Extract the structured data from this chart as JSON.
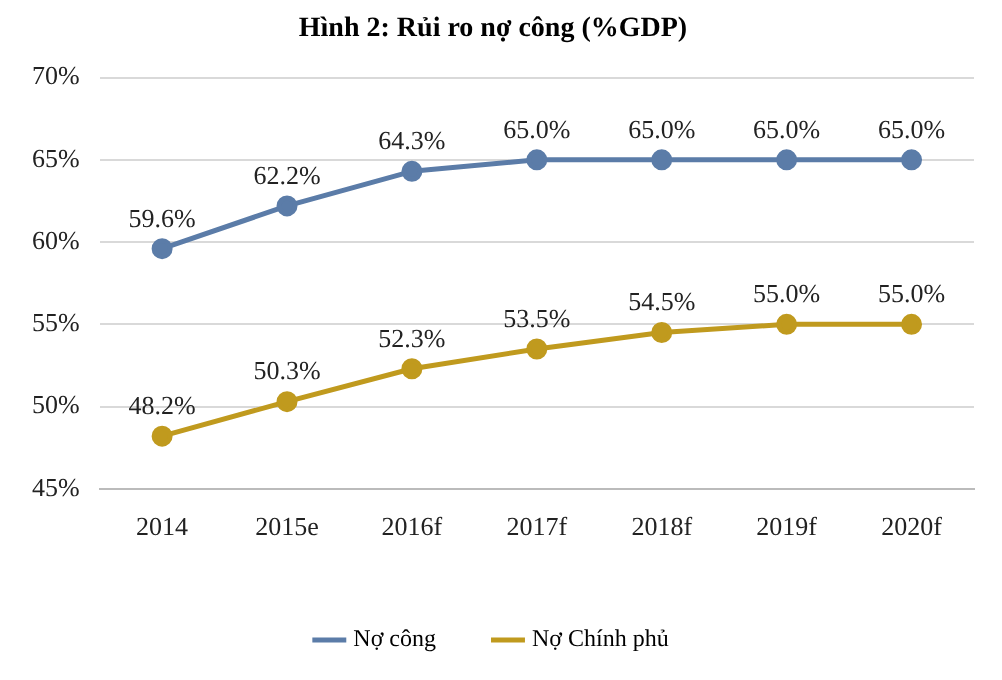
{
  "chart_data": {
    "type": "line",
    "title": "Hình 2: Rủi ro nợ công (%GDP)",
    "categories": [
      "2014",
      "2015e",
      "2016f",
      "2017f",
      "2018f",
      "2019f",
      "2020f"
    ],
    "series": [
      {
        "name": "Nợ công",
        "color": "#5b7ca8",
        "values": [
          59.6,
          62.2,
          64.3,
          65.0,
          65.0,
          65.0,
          65.0
        ],
        "value_labels": [
          "59.6%",
          "62.2%",
          "64.3%",
          "65.0%",
          "65.0%",
          "65.0%",
          "65.0%"
        ]
      },
      {
        "name": "Nợ Chính phủ",
        "color": "#c09a1e",
        "values": [
          48.2,
          50.3,
          52.3,
          53.5,
          54.5,
          55.0,
          55.0
        ],
        "value_labels": [
          "48.2%",
          "50.3%",
          "52.3%",
          "53.5%",
          "54.5%",
          "55.0%",
          "55.0%"
        ]
      }
    ],
    "ylim": [
      45,
      70
    ],
    "yticks": [
      {
        "value": 45,
        "label": "45%"
      },
      {
        "value": 50,
        "label": "50%"
      },
      {
        "value": 55,
        "label": "55%"
      },
      {
        "value": 60,
        "label": "60%"
      },
      {
        "value": 65,
        "label": "65%"
      },
      {
        "value": 70,
        "label": "70%"
      }
    ],
    "grid": "y",
    "legend": "bottom",
    "marker": "circle",
    "line_style": "solid"
  }
}
